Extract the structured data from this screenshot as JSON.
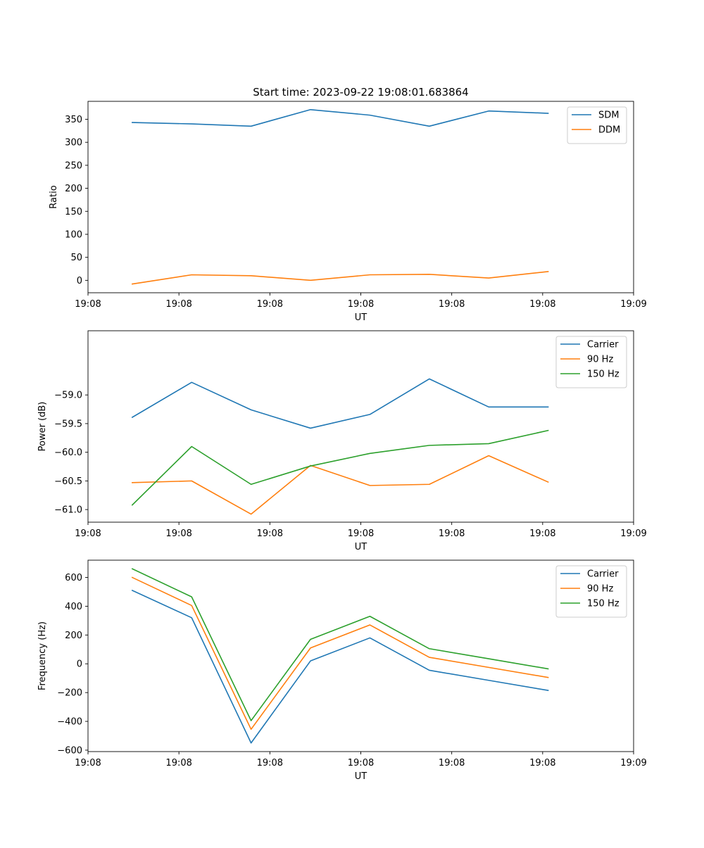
{
  "chart_data": [
    {
      "type": "line",
      "title": "Start time: 2023-09-22 19:08:01.683864",
      "xlabel": "UT",
      "ylabel": "Ratio",
      "xlim": [
        0,
        9
      ],
      "ylim": [
        -27,
        389
      ],
      "x_ticks": [
        0,
        1.5,
        3,
        4.5,
        6,
        7.5,
        9
      ],
      "x_tick_labels": [
        "19:08",
        "19:08",
        "19:08",
        "19:08",
        "19:08",
        "19:08",
        "19:09"
      ],
      "y_ticks": [
        0,
        50,
        100,
        150,
        200,
        250,
        300,
        350
      ],
      "y_tick_labels": [
        "0",
        "50",
        "100",
        "150",
        "200",
        "250",
        "300",
        "350"
      ],
      "x": [
        0.73,
        1.71,
        2.69,
        3.67,
        4.65,
        5.63,
        6.61,
        7.59
      ],
      "series": [
        {
          "name": "SDM",
          "color": "#1f77b4",
          "values": [
            343,
            340,
            335,
            371,
            359,
            335,
            368,
            363
          ]
        },
        {
          "name": "DDM",
          "color": "#ff7f0e",
          "values": [
            -8,
            12,
            10,
            0,
            12,
            13,
            5,
            19
          ]
        }
      ],
      "legend": "top-right"
    },
    {
      "type": "line",
      "title": "",
      "xlabel": "UT",
      "ylabel": "Power (dB)",
      "xlim": [
        0,
        9
      ],
      "ylim": [
        -61.22,
        -57.88
      ],
      "x_ticks": [
        0,
        1.5,
        3,
        4.5,
        6,
        7.5,
        9
      ],
      "x_tick_labels": [
        "19:08",
        "19:08",
        "19:08",
        "19:08",
        "19:08",
        "19:08",
        "19:09"
      ],
      "y_ticks": [
        -61.0,
        -60.5,
        -60.0,
        -59.5,
        -59.0
      ],
      "y_tick_labels": [
        "−61.0",
        "−60.5",
        "−60.0",
        "−59.5",
        "−59.0"
      ],
      "x": [
        0.73,
        1.71,
        2.69,
        3.67,
        4.65,
        5.63,
        6.61,
        7.59
      ],
      "series": [
        {
          "name": "Carrier",
          "color": "#1f77b4",
          "values": [
            -59.39,
            -58.78,
            -59.26,
            -59.58,
            -59.34,
            -58.72,
            -59.21,
            -59.21
          ]
        },
        {
          "name": "90 Hz",
          "color": "#ff7f0e",
          "values": [
            -60.53,
            -60.5,
            -61.08,
            -60.23,
            -60.58,
            -60.56,
            -60.06,
            -60.52
          ]
        },
        {
          "name": "150 Hz",
          "color": "#2ca02c",
          "values": [
            -60.92,
            -59.9,
            -60.56,
            -60.24,
            -60.02,
            -59.88,
            -59.85,
            -59.62
          ]
        }
      ],
      "legend": "top-right"
    },
    {
      "type": "line",
      "title": "",
      "xlabel": "UT",
      "ylabel": "Frequency (Hz)",
      "xlim": [
        0,
        9
      ],
      "ylim": [
        -610,
        720
      ],
      "x_ticks": [
        0,
        1.5,
        3,
        4.5,
        6,
        7.5,
        9
      ],
      "x_tick_labels": [
        "19:08",
        "19:08",
        "19:08",
        "19:08",
        "19:08",
        "19:08",
        "19:09"
      ],
      "y_ticks": [
        -600,
        -400,
        -200,
        0,
        200,
        400,
        600
      ],
      "y_tick_labels": [
        "−600",
        "−400",
        "−200",
        "0",
        "200",
        "400",
        "600"
      ],
      "x": [
        0.73,
        1.71,
        2.69,
        3.67,
        4.65,
        5.63,
        6.61,
        7.59
      ],
      "series": [
        {
          "name": "Carrier",
          "color": "#1f77b4",
          "values": [
            510,
            320,
            -550,
            20,
            180,
            -45,
            -115,
            -185
          ]
        },
        {
          "name": "90 Hz",
          "color": "#ff7f0e",
          "values": [
            600,
            405,
            -455,
            110,
            270,
            45,
            -25,
            -95
          ]
        },
        {
          "name": "150 Hz",
          "color": "#2ca02c",
          "values": [
            660,
            465,
            -395,
            170,
            330,
            105,
            35,
            -35
          ]
        }
      ],
      "legend": "top-right"
    }
  ]
}
